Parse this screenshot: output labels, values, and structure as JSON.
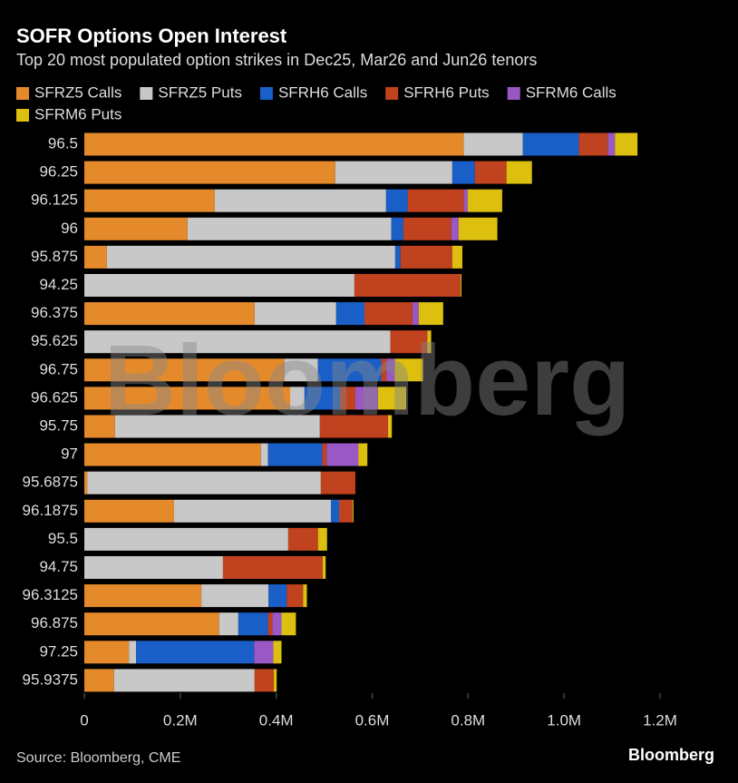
{
  "chart_data": {
    "type": "bar",
    "orientation": "horizontal",
    "stacked": true,
    "title": "SOFR Options Open Interest",
    "subtitle": "Top 20 most populated option strikes in Dec25, Mar26 and Jun26 tenors",
    "source": "Source: Bloomberg, CME",
    "brand": "Bloomberg",
    "watermark": "Bloomberg",
    "categories": [
      "96.5",
      "96.25",
      "96.125",
      "96",
      "95.875",
      "94.25",
      "96.375",
      "95.625",
      "96.75",
      "96.625",
      "95.75",
      "97",
      "95.6875",
      "96.1875",
      "95.5",
      "94.75",
      "96.3125",
      "96.875",
      "97.25",
      "95.9375"
    ],
    "series": [
      {
        "name": "SFRZ5 Calls",
        "color": "#e58a2b",
        "values": [
          791000,
          523000,
          272000,
          215000,
          47000,
          0,
          355000,
          0,
          417000,
          429000,
          64000,
          368000,
          6000,
          187000,
          0,
          0,
          244000,
          281000,
          93000,
          62000
        ]
      },
      {
        "name": "SFRZ5 Puts",
        "color": "#c8c8c8",
        "values": [
          123000,
          244000,
          357000,
          425000,
          601000,
          563000,
          170000,
          638000,
          70000,
          30000,
          427000,
          15000,
          487000,
          327000,
          425000,
          289000,
          140000,
          40000,
          15000,
          293000
        ]
      },
      {
        "name": "SFRH6 Calls",
        "color": "#1a5fc8",
        "values": [
          117000,
          47000,
          45000,
          25000,
          11000,
          0,
          59000,
          0,
          132000,
          74000,
          0,
          113000,
          0,
          17000,
          0,
          0,
          38000,
          62000,
          246000,
          0
        ]
      },
      {
        "name": "SFRH6 Puts",
        "color": "#c0421f",
        "values": [
          60000,
          66000,
          117000,
          100000,
          108000,
          221000,
          100000,
          77000,
          11000,
          32000,
          142000,
          9000,
          72000,
          28000,
          62000,
          208000,
          34000,
          9000,
          0,
          40000
        ]
      },
      {
        "name": "SFRM6 Calls",
        "color": "#9a58c4",
        "values": [
          15000,
          0,
          8000,
          15000,
          0,
          0,
          13000,
          0,
          17000,
          47000,
          0,
          66000,
          0,
          0,
          0,
          0,
          0,
          19000,
          40000,
          0
        ]
      },
      {
        "name": "SFRM6 Puts",
        "color": "#dcbf0f",
        "values": [
          47000,
          53000,
          72000,
          81000,
          21000,
          2000,
          51000,
          8000,
          59000,
          59000,
          8000,
          19000,
          0,
          2000,
          19000,
          6000,
          8000,
          30000,
          17000,
          6000
        ]
      }
    ],
    "xlim": [
      0,
      1200000
    ],
    "xticks": [
      0,
      {
        "value": 200000,
        "label": "0.2M"
      },
      {
        "value": 400000,
        "label": "0.4M"
      },
      {
        "value": 600000,
        "label": "0.6M"
      },
      {
        "value": 800000,
        "label": "0.8M"
      },
      {
        "value": 1000000,
        "label": "1.0M"
      },
      {
        "value": 1200000,
        "label": "1.2M"
      }
    ],
    "grid": false
  }
}
